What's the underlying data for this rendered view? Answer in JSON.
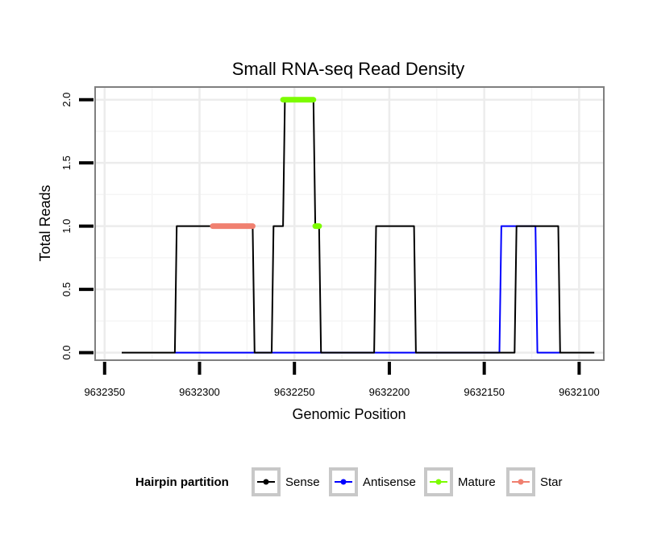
{
  "chart_data": {
    "type": "line",
    "title": "Small RNA-seq Read Density",
    "xlabel": "Genomic Position",
    "ylabel": "Total Reads",
    "x_reversed": true,
    "xlim": [
      9632355,
      9632087
    ],
    "ylim": [
      -0.06,
      2.1
    ],
    "x_ticks": [
      9632350,
      9632300,
      9632250,
      9632200,
      9632150,
      9632100
    ],
    "x_tick_labels": [
      "9632350",
      "9632300",
      "9632250",
      "9632200",
      "9632150",
      "9632100"
    ],
    "y_ticks": [
      0.0,
      0.5,
      1.0,
      1.5,
      2.0
    ],
    "y_tick_labels": [
      "0.0",
      "0.5",
      "1.0",
      "1.5",
      "2.0"
    ],
    "grid": true,
    "legend": {
      "title": "Hairpin partition",
      "position": "bottom",
      "items": [
        {
          "label": "Sense",
          "color": "#000000"
        },
        {
          "label": "Antisense",
          "color": "#0000ff"
        },
        {
          "label": "Mature",
          "color": "#7cfc00"
        },
        {
          "label": "Star",
          "color": "#f08070"
        }
      ]
    },
    "series": [
      {
        "name": "Sense",
        "color": "#000000",
        "style": "line",
        "x": [
          9632341,
          9632313,
          9632312,
          9632272,
          9632271,
          9632262,
          9632261,
          9632256,
          9632255,
          9632240,
          9632239,
          9632237,
          9632236,
          9632208,
          9632207,
          9632187,
          9632186,
          9632134,
          9632133,
          9632122,
          9632121,
          9632111,
          9632110,
          9632092
        ],
        "y": [
          0,
          0,
          1,
          1,
          0,
          0,
          1,
          1,
          2,
          2,
          1,
          1,
          0,
          0,
          1,
          1,
          0,
          0,
          1,
          1,
          1,
          1,
          0,
          0
        ]
      },
      {
        "name": "Antisense",
        "color": "#0000ff",
        "style": "line",
        "x": [
          9632313,
          9632142,
          9632141,
          9632123,
          9632122,
          9632110
        ],
        "y": [
          0,
          0,
          1,
          1,
          0,
          0
        ]
      },
      {
        "name": "Mature",
        "color": "#7cfc00",
        "style": "segment",
        "segments": [
          {
            "x_start": 9632256,
            "x_end": 9632240,
            "y": 2
          },
          {
            "x_start": 9632239,
            "x_end": 9632237,
            "y": 1
          }
        ]
      },
      {
        "name": "Star",
        "color": "#f08070",
        "style": "segment",
        "segments": [
          {
            "x_start": 9632293,
            "x_end": 9632272,
            "y": 1
          }
        ]
      }
    ]
  }
}
